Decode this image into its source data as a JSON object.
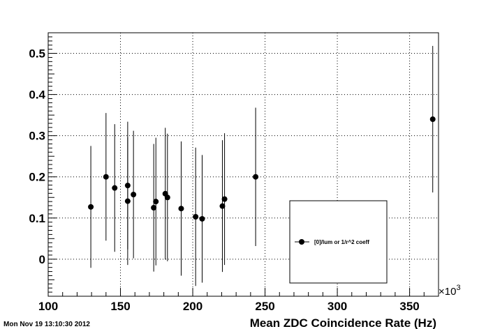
{
  "timestamp": "Mon Nov 19 13:10:30 2012",
  "chart_data": {
    "type": "scatter",
    "title": "",
    "xlabel": "Mean ZDC Coincidence Rate (Hz)",
    "ylabel": "",
    "x_multiplier_label": "×10",
    "x_multiplier_exponent": "3",
    "xlim": [
      100,
      370
    ],
    "ylim": [
      -0.09,
      0.55
    ],
    "grid": true,
    "legend_position": "bottom-right",
    "x_ticks": [
      100,
      150,
      200,
      250,
      300,
      350
    ],
    "x_tick_labels": [
      "100",
      "150",
      "200",
      "250",
      "300",
      "350"
    ],
    "y_ticks": [
      0,
      0.1,
      0.2,
      0.3,
      0.4,
      0.5
    ],
    "y_tick_labels": [
      "0",
      "0.1",
      "0.2",
      "0.3",
      "0.4",
      "0.5"
    ],
    "series": [
      {
        "name": "[0]/lum or 1/r^2 coeff",
        "color": "#000000",
        "points": [
          {
            "x": 129.5,
            "y": 0.127,
            "err": 0.148
          },
          {
            "x": 140.0,
            "y": 0.2,
            "err": 0.155
          },
          {
            "x": 146.0,
            "y": 0.173,
            "err": 0.155
          },
          {
            "x": 155.0,
            "y": 0.179,
            "err": 0.155
          },
          {
            "x": 155.0,
            "y": 0.141,
            "err": 0.155
          },
          {
            "x": 159.0,
            "y": 0.157,
            "err": 0.155
          },
          {
            "x": 173.0,
            "y": 0.125,
            "err": 0.155
          },
          {
            "x": 174.5,
            "y": 0.14,
            "err": 0.155
          },
          {
            "x": 181.0,
            "y": 0.159,
            "err": 0.16
          },
          {
            "x": 182.5,
            "y": 0.15,
            "err": 0.155
          },
          {
            "x": 192.0,
            "y": 0.123,
            "err": 0.163
          },
          {
            "x": 202.0,
            "y": 0.103,
            "err": 0.168
          },
          {
            "x": 206.5,
            "y": 0.098,
            "err": 0.155
          },
          {
            "x": 220.5,
            "y": 0.129,
            "err": 0.16
          },
          {
            "x": 222.0,
            "y": 0.146,
            "err": 0.16
          },
          {
            "x": 243.5,
            "y": 0.2,
            "err": 0.168
          },
          {
            "x": 366.0,
            "y": 0.34,
            "err": 0.178
          }
        ]
      }
    ]
  }
}
